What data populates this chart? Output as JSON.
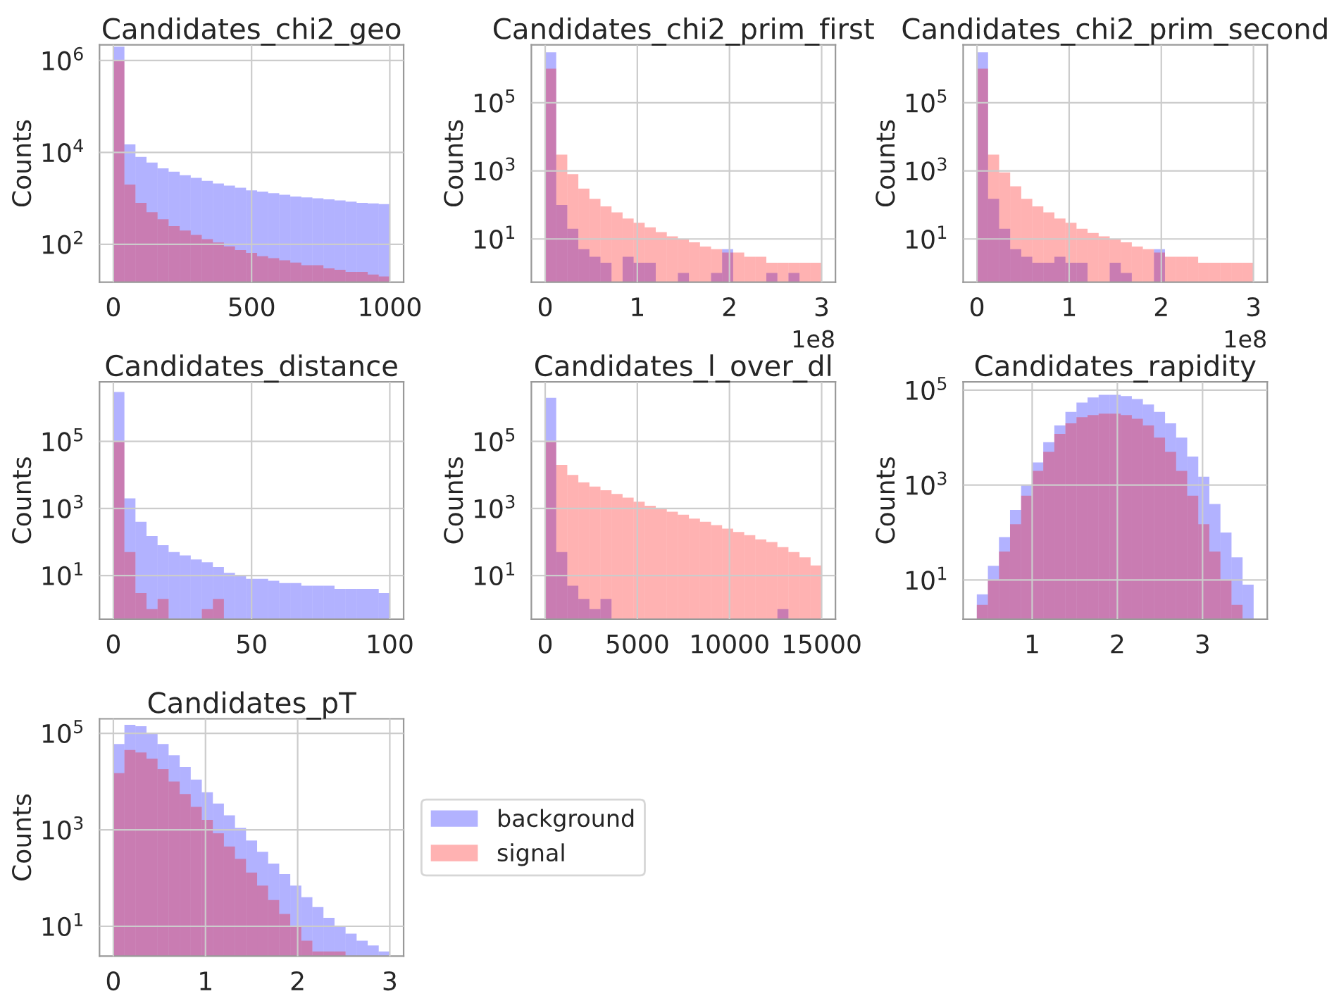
{
  "chart_data": [
    {
      "type": "histogram",
      "title": "Candidates_chi2_geo",
      "ylabel": "Counts",
      "log": "y",
      "grid": true,
      "bins": [
        0,
        40,
        80,
        120,
        160,
        200,
        240,
        280,
        320,
        360,
        400,
        440,
        480,
        520,
        560,
        600,
        640,
        680,
        720,
        760,
        800,
        840,
        880,
        920,
        960,
        1000
      ],
      "xlim": [
        -50,
        1050
      ],
      "xticks": [
        0,
        500,
        1000
      ],
      "ylim": [
        15,
        2200000
      ],
      "yticks": [
        {
          "value": 100,
          "label": "10$^{2}$"
        },
        {
          "value": 10000,
          "label": "10$^{4}$"
        },
        {
          "value": 1000000,
          "label": "10$^{6}$"
        }
      ],
      "series": [
        {
          "color": "#0000ff",
          "values": [
            2000000,
            15000,
            8000,
            6000,
            4500,
            3800,
            3200,
            2800,
            2400,
            2100,
            1900,
            1700,
            1500,
            1400,
            1300,
            1200,
            1100,
            1050,
            1000,
            950,
            900,
            850,
            800,
            780,
            750
          ]
        },
        {
          "color": "#ff0000",
          "values": [
            1000000,
            2000,
            800,
            500,
            350,
            250,
            200,
            160,
            130,
            110,
            90,
            75,
            65,
            55,
            50,
            45,
            40,
            35,
            35,
            30,
            28,
            25,
            25,
            22,
            20
          ]
        }
      ]
    },
    {
      "type": "histogram",
      "title": "Candidates_chi2_prim_first",
      "ylabel": "Counts",
      "log": "y",
      "grid": true,
      "bins": [
        0,
        0.12,
        0.24,
        0.36,
        0.48,
        0.6,
        0.72,
        0.84,
        0.96,
        1.08,
        1.2,
        1.32,
        1.44,
        1.56,
        1.68,
        1.8,
        1.92,
        2.04,
        2.16,
        2.28,
        2.4,
        2.52,
        2.64,
        2.76,
        2.88,
        3.0
      ],
      "xlim": [
        -0.15,
        3.15
      ],
      "xticks": [
        0,
        1,
        2,
        3
      ],
      "ylim": [
        0.54,
        5000000
      ],
      "yticks": [
        {
          "value": 10,
          "label": "10$^{1}$"
        },
        {
          "value": 1000,
          "label": "10$^{3}$"
        },
        {
          "value": 100000,
          "label": "10$^{5}$"
        }
      ],
      "annotations": [
        "1e8"
      ],
      "series": [
        {
          "color": "#0000ff",
          "values": [
            3000000,
            100,
            20,
            5,
            3,
            2,
            null,
            3,
            2,
            2,
            null,
            null,
            1,
            null,
            null,
            1,
            5,
            null,
            null,
            null,
            1,
            null,
            1,
            null,
            null
          ]
        },
        {
          "color": "#ff0000",
          "values": [
            1000000,
            3000,
            800,
            300,
            150,
            90,
            60,
            40,
            30,
            22,
            16,
            12,
            10,
            8,
            6,
            5,
            4,
            4,
            3,
            3,
            2,
            2,
            2,
            2,
            2
          ]
        }
      ]
    },
    {
      "type": "histogram",
      "title": "Candidates_chi2_prim_second",
      "ylabel": "Counts",
      "log": "y",
      "grid": true,
      "bins": [
        0,
        0.12,
        0.24,
        0.36,
        0.48,
        0.6,
        0.72,
        0.84,
        0.96,
        1.08,
        1.2,
        1.32,
        1.44,
        1.56,
        1.68,
        1.8,
        1.92,
        2.04,
        2.16,
        2.28,
        2.4,
        2.52,
        2.64,
        2.76,
        2.88,
        3.0
      ],
      "xlim": [
        -0.15,
        3.15
      ],
      "xticks": [
        0,
        1,
        2,
        3
      ],
      "ylim": [
        0.54,
        5000000
      ],
      "yticks": [
        {
          "value": 10,
          "label": "10$^{1}$"
        },
        {
          "value": 1000,
          "label": "10$^{3}$"
        },
        {
          "value": 100000,
          "label": "10$^{5}$"
        }
      ],
      "annotations": [
        "1e8"
      ],
      "series": [
        {
          "color": "#0000ff",
          "values": [
            3000000,
            150,
            20,
            5,
            3,
            2,
            2,
            3,
            2,
            2,
            null,
            null,
            2,
            1,
            null,
            null,
            5,
            null,
            null,
            null,
            null,
            null,
            null,
            null,
            null
          ]
        },
        {
          "color": "#ff0000",
          "values": [
            1000000,
            3000,
            900,
            350,
            150,
            90,
            60,
            40,
            30,
            20,
            15,
            12,
            10,
            8,
            6,
            5,
            4,
            3,
            3,
            3,
            2,
            2,
            2,
            2,
            2
          ]
        }
      ]
    },
    {
      "type": "histogram",
      "title": "Candidates_distance",
      "ylabel": "Counts",
      "log": "y",
      "grid": true,
      "bins": [
        0,
        4,
        8,
        12,
        16,
        20,
        24,
        28,
        32,
        36,
        40,
        44,
        48,
        52,
        56,
        60,
        64,
        68,
        72,
        76,
        80,
        84,
        88,
        92,
        96,
        100
      ],
      "xlim": [
        -5,
        105
      ],
      "xticks": [
        0,
        50,
        100
      ],
      "ylim": [
        0.5,
        6000000
      ],
      "yticks": [
        {
          "value": 10,
          "label": "10$^{1}$"
        },
        {
          "value": 1000,
          "label": "10$^{3}$"
        },
        {
          "value": 100000,
          "label": "10$^{5}$"
        }
      ],
      "series": [
        {
          "color": "#0000ff",
          "values": [
            3000000,
            2000,
            400,
            150,
            80,
            50,
            40,
            30,
            25,
            18,
            12,
            10,
            8,
            8,
            7,
            6,
            6,
            5,
            5,
            5,
            4,
            4,
            4,
            4,
            3
          ]
        },
        {
          "color": "#ff0000",
          "values": [
            100000,
            50,
            3,
            1,
            2,
            null,
            null,
            null,
            1,
            2,
            null,
            null,
            null,
            null,
            null,
            null,
            null,
            null,
            null,
            null,
            null,
            null,
            null,
            null,
            null
          ]
        }
      ]
    },
    {
      "type": "histogram",
      "title": "Candidates_l_over_dl",
      "ylabel": "Counts",
      "log": "y",
      "grid": true,
      "bins": [
        0,
        600,
        1200,
        1800,
        2400,
        3000,
        3600,
        4200,
        4800,
        5400,
        6000,
        6600,
        7200,
        7800,
        8400,
        9000,
        9600,
        10200,
        10800,
        11400,
        12000,
        12600,
        13200,
        13800,
        14400,
        15000
      ],
      "xlim": [
        -750,
        15750
      ],
      "xticks": [
        0,
        5000,
        10000,
        15000
      ],
      "ylim": [
        0.5,
        6000000
      ],
      "yticks": [
        {
          "value": 10,
          "label": "10$^{1}$"
        },
        {
          "value": 1000,
          "label": "10$^{3}$"
        },
        {
          "value": 100000,
          "label": "10$^{5}$"
        }
      ],
      "series": [
        {
          "color": "#0000ff",
          "values": [
            2000000,
            50,
            5,
            2,
            1,
            2,
            null,
            null,
            null,
            null,
            null,
            null,
            null,
            null,
            null,
            null,
            null,
            null,
            null,
            null,
            null,
            1,
            null,
            null,
            null
          ]
        },
        {
          "color": "#ff0000",
          "values": [
            100000,
            20000,
            10000,
            6000,
            4500,
            3500,
            2700,
            2100,
            1600,
            1200,
            1000,
            800,
            650,
            500,
            400,
            320,
            250,
            200,
            160,
            120,
            100,
            70,
            50,
            35,
            20
          ]
        }
      ]
    },
    {
      "type": "histogram",
      "title": "Candidates_rapidity",
      "ylabel": "Counts",
      "log": "y",
      "grid": true,
      "bins": [
        0.35,
        0.48,
        0.61,
        0.74,
        0.87,
        1.0,
        1.13,
        1.26,
        1.39,
        1.52,
        1.65,
        1.78,
        1.91,
        2.04,
        2.17,
        2.3,
        2.43,
        2.56,
        2.69,
        2.82,
        2.95,
        3.08,
        3.21,
        3.34,
        3.47,
        3.6
      ],
      "xlim": [
        0.19,
        3.76
      ],
      "xticks": [
        1,
        2,
        3
      ],
      "ylim": [
        1.5,
        150000
      ],
      "yticks": [
        {
          "value": 10,
          "label": "10$^{1}$"
        },
        {
          "value": 1000,
          "label": "10$^{3}$"
        },
        {
          "value": 100000,
          "label": "10$^{5}$"
        }
      ],
      "series": [
        {
          "color": "#0000ff",
          "values": [
            5,
            20,
            80,
            300,
            1000,
            3000,
            8000,
            18000,
            35000,
            55000,
            70000,
            80000,
            80000,
            75000,
            65000,
            50000,
            35000,
            20000,
            10000,
            4000,
            1500,
            400,
            100,
            30,
            8
          ]
        },
        {
          "color": "#ff0000",
          "values": [
            3,
            10,
            40,
            150,
            600,
            2000,
            5000,
            12000,
            20000,
            27000,
            30000,
            32000,
            32000,
            30000,
            25000,
            18000,
            10000,
            5000,
            2000,
            600,
            150,
            40,
            10,
            3,
            null
          ]
        }
      ]
    },
    {
      "type": "histogram",
      "title": "Candidates_pT",
      "ylabel": "Counts",
      "log": "y",
      "grid": true,
      "legend": "right",
      "bins": [
        0,
        0.12,
        0.24,
        0.36,
        0.48,
        0.6,
        0.72,
        0.84,
        0.96,
        1.08,
        1.2,
        1.32,
        1.44,
        1.56,
        1.68,
        1.8,
        1.92,
        2.04,
        2.16,
        2.28,
        2.4,
        2.52,
        2.64,
        2.76,
        2.88,
        3.0
      ],
      "xlim": [
        -0.15,
        3.15
      ],
      "xticks": [
        0,
        1,
        2,
        3
      ],
      "ylim": [
        2.4,
        200000
      ],
      "yticks": [
        {
          "value": 10,
          "label": "10$^{1}$"
        },
        {
          "value": 1000,
          "label": "10$^{3}$"
        },
        {
          "value": 100000,
          "label": "10$^{5}$"
        }
      ],
      "series": [
        {
          "name": "background",
          "color": "#0000ff",
          "values": [
            60000,
            150000,
            140000,
            100000,
            60000,
            35000,
            20000,
            11000,
            6000,
            3500,
            2000,
            1100,
            600,
            350,
            200,
            120,
            70,
            40,
            25,
            15,
            10,
            7,
            5,
            4,
            3
          ]
        },
        {
          "name": "signal",
          "color": "#ff0000",
          "values": [
            15000,
            45000,
            40000,
            30000,
            18000,
            10000,
            5500,
            3000,
            1600,
            850,
            450,
            250,
            130,
            70,
            35,
            18,
            10,
            5,
            3,
            3,
            3,
            null,
            null,
            null,
            null
          ]
        }
      ]
    }
  ]
}
